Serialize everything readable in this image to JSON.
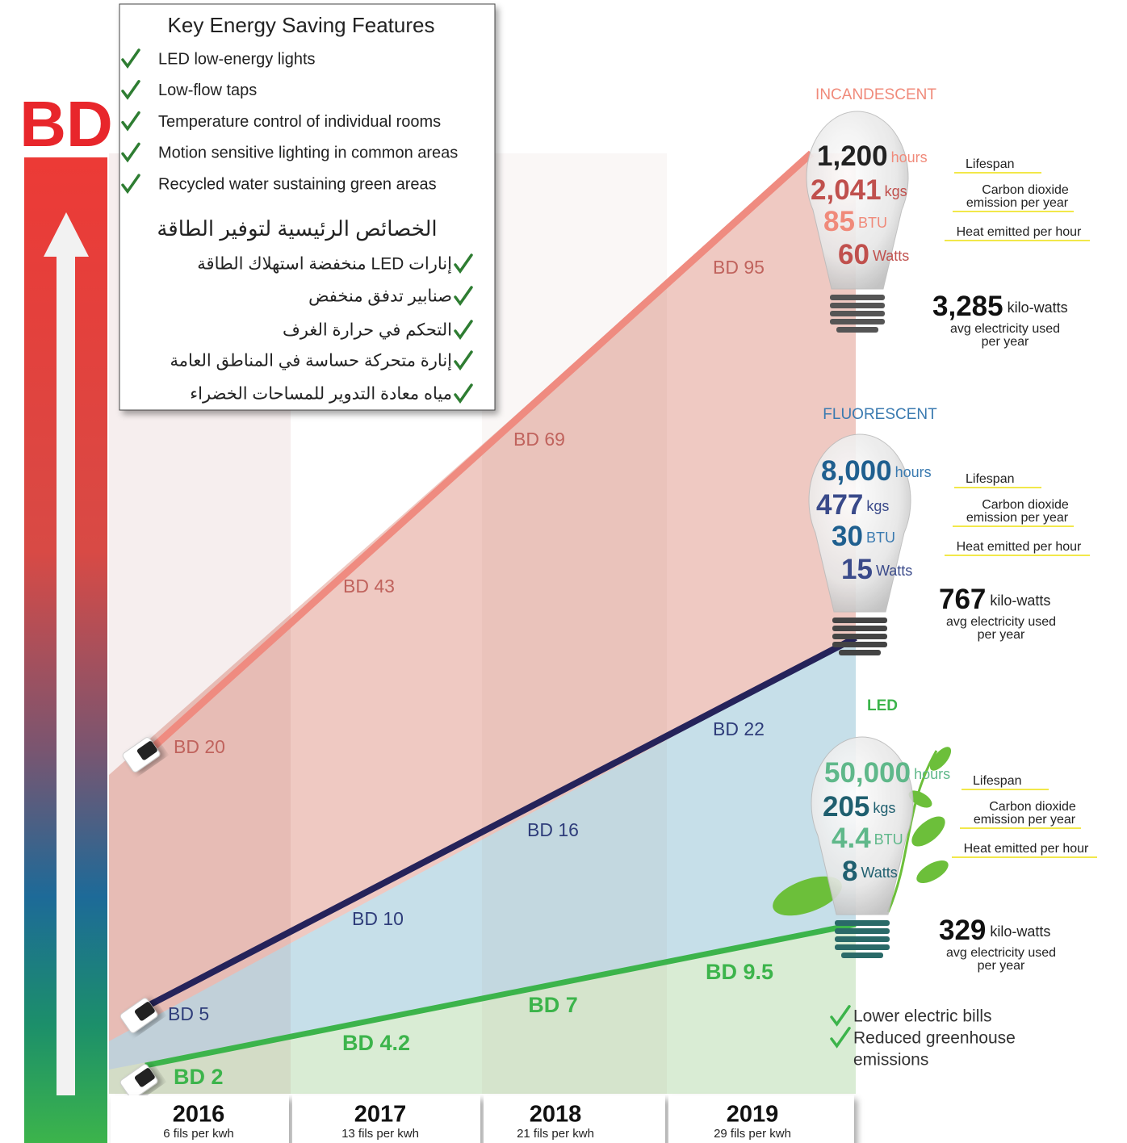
{
  "axis_label": "BD",
  "features": {
    "title": "Key Energy Saving Features",
    "items": [
      "LED low-energy lights",
      "Low-flow taps",
      "Temperature control of individual rooms",
      "Motion sensitive lighting in common areas",
      "Recycled water sustaining green areas"
    ],
    "title_ar": "الخصائص الرئيسية لتوفير الطاقة",
    "items_ar": [
      "إنارات LED منخفضة استهلاك الطاقة",
      "صنابير تدفق منخفض",
      "التحكم في حرارة الغرف",
      "إنارة متحركة حساسة في المناطق العامة",
      "مياه معادة التدوير للمساحات الخضراء"
    ]
  },
  "years": [
    {
      "year": "2016",
      "rate": "6 fils per kwh"
    },
    {
      "year": "2017",
      "rate": "13 fils per kwh"
    },
    {
      "year": "2018",
      "rate": "21 fils per kwh"
    },
    {
      "year": "2019",
      "rate": "29 fils per kwh"
    }
  ],
  "stat_labels": {
    "lifespan": "Lifespan",
    "co2": [
      "Carbon dioxide",
      "emission per year"
    ],
    "heat": "Heat emitted per hour",
    "kw_caption": [
      "avg electricity used",
      "per year"
    ]
  },
  "bulbs": [
    {
      "name": "INCANDESCENT",
      "lifespan": "1,200",
      "lifespan_unit": "hours",
      "co2": "2,041",
      "co2_unit": "kgs",
      "heat": "85",
      "heat_unit": "BTU",
      "watts": "60",
      "watts_unit": "Watts",
      "kw": "3,285",
      "kw_unit": "kilo-watts",
      "costs": [
        "BD 20",
        "BD 43",
        "BD 69",
        "BD 95"
      ]
    },
    {
      "name": "FLUORESCENT",
      "lifespan": "8,000",
      "lifespan_unit": "hours",
      "co2": "477",
      "co2_unit": "kgs",
      "heat": "30",
      "heat_unit": "BTU",
      "watts": "15",
      "watts_unit": "Watts",
      "kw": "767",
      "kw_unit": "kilo-watts",
      "costs": [
        "BD 5",
        "BD 10",
        "BD 16",
        "BD 22"
      ]
    },
    {
      "name": "LED",
      "lifespan": "50,000",
      "lifespan_unit": "hours",
      "co2": "205",
      "co2_unit": "kgs",
      "heat": "4.4",
      "heat_unit": "BTU",
      "watts": "8",
      "watts_unit": "Watts",
      "kw": "329",
      "kw_unit": "kilo-watts",
      "costs": [
        "BD 2",
        "BD 4.2",
        "BD 7",
        "BD 9.5"
      ]
    }
  ],
  "benefits": [
    [
      "Lower electric bills"
    ],
    [
      "Reduced greenhouse",
      "emissions"
    ]
  ]
}
